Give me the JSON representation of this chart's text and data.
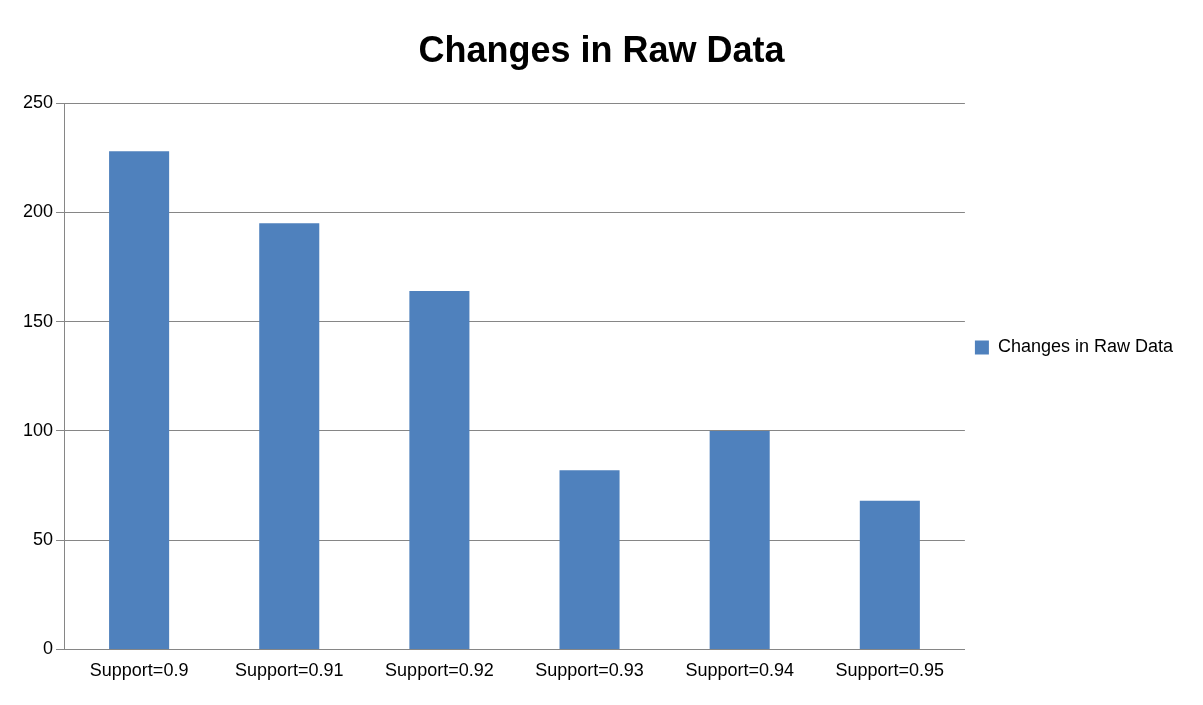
{
  "chart_data": {
    "type": "bar",
    "title": "Changes in Raw Data",
    "categories": [
      "Support=0.9",
      "Support=0.91",
      "Support=0.92",
      "Support=0.93",
      "Support=0.94",
      "Support=0.95"
    ],
    "series": [
      {
        "name": "Changes in Raw Data",
        "color": "#4f81bd",
        "values": [
          228,
          195,
          164,
          82,
          100,
          68
        ]
      }
    ],
    "ylim": [
      0,
      250
    ],
    "yticks": [
      0,
      50,
      100,
      150,
      200,
      250
    ],
    "grid": "y",
    "legend": "right"
  }
}
